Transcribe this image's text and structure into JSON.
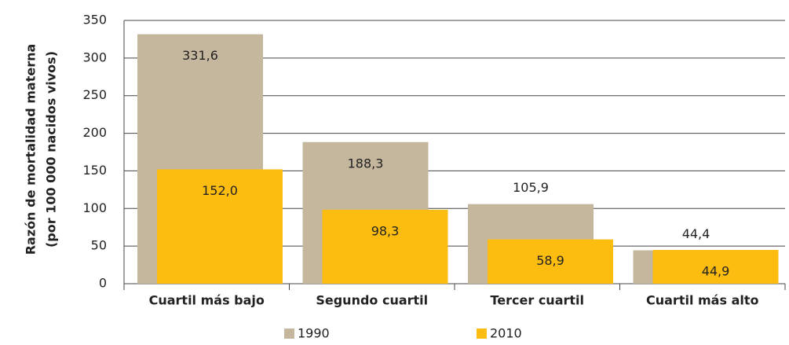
{
  "chart_data": {
    "type": "bar",
    "ylabel": [
      "Razón de mortalidad materna",
      "(por 100 000 nacidos vivos)"
    ],
    "categories": [
      "Cuartil más bajo",
      "Segundo cuartil",
      "Tercer cuartil",
      "Cuartil más alto"
    ],
    "series": [
      {
        "name": "1990",
        "color": "#c5b79d",
        "values": [
          331.6,
          188.3,
          105.9,
          44.4
        ],
        "value_labels": [
          "331,6",
          "188,3",
          "105,9",
          "44,4"
        ]
      },
      {
        "name": "2010",
        "color": "#fdbd10",
        "values": [
          152.0,
          98.3,
          58.9,
          44.9
        ],
        "value_labels": [
          "152,0",
          "98,3",
          "58,9",
          "44,9"
        ]
      }
    ],
    "ylim": [
      0,
      350
    ],
    "yticks": [
      0,
      50,
      100,
      150,
      200,
      250,
      300,
      350
    ],
    "grid": true,
    "legend": "bottom"
  }
}
